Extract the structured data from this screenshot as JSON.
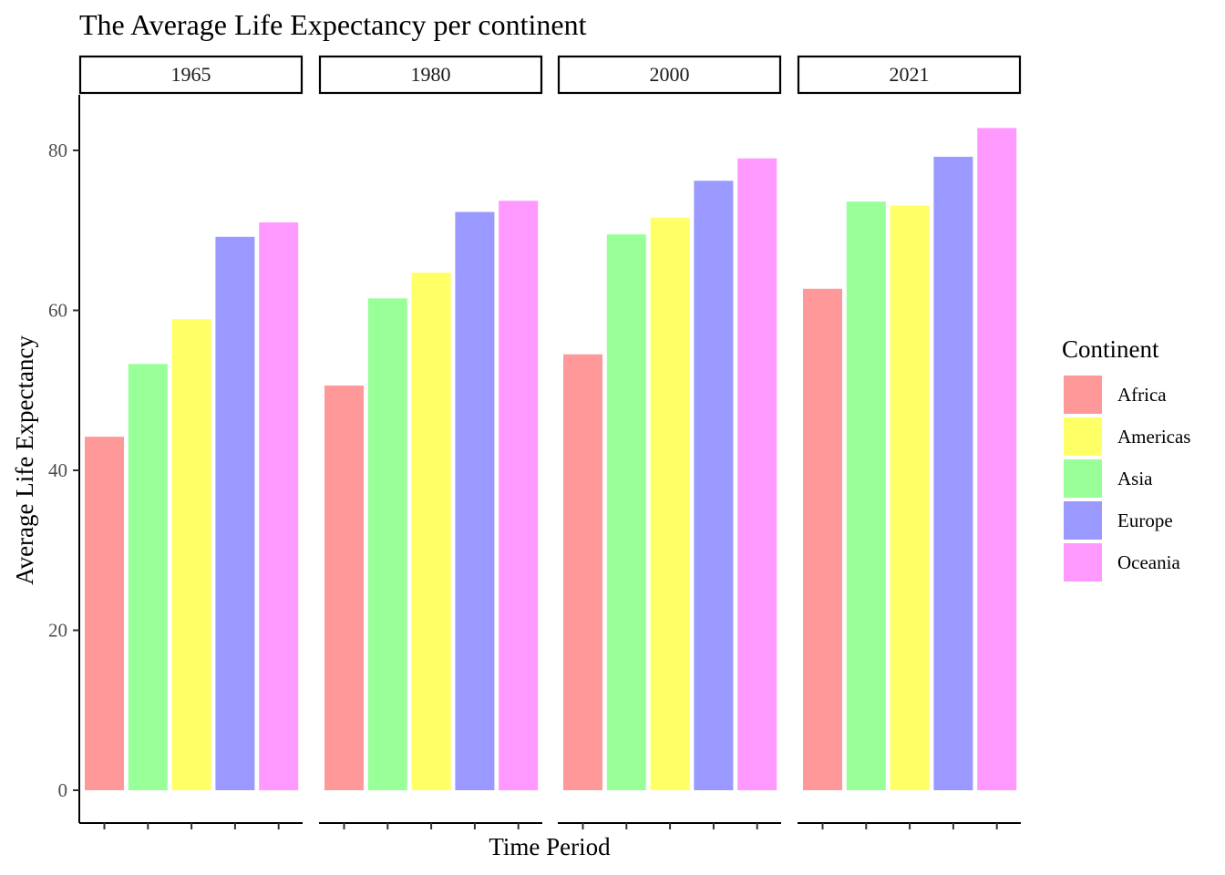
{
  "chart_data": {
    "type": "bar",
    "title": "The Average Life Expectancy per continent",
    "xlabel": "Time Period",
    "ylabel": "Average Life Expectancy",
    "ylim": [
      0,
      87
    ],
    "yticks": [
      0,
      20,
      40,
      60,
      80
    ],
    "facets": [
      "1965",
      "1980",
      "2000",
      "2021"
    ],
    "categories": [
      "Africa",
      "Asia",
      "Americas",
      "Europe",
      "Oceania"
    ],
    "colors": {
      "Africa": "#FF9999",
      "Americas": "#FFFF66",
      "Asia": "#99FF99",
      "Europe": "#9999FF",
      "Oceania": "#FF99FF"
    },
    "series": [
      {
        "facet": "1965",
        "values": {
          "Africa": 44.2,
          "Asia": 53.3,
          "Americas": 58.9,
          "Europe": 69.2,
          "Oceania": 71.0
        }
      },
      {
        "facet": "1980",
        "values": {
          "Africa": 50.6,
          "Asia": 61.5,
          "Americas": 64.7,
          "Europe": 72.3,
          "Oceania": 73.7
        }
      },
      {
        "facet": "2000",
        "values": {
          "Africa": 54.5,
          "Asia": 69.5,
          "Americas": 71.6,
          "Europe": 76.2,
          "Oceania": 79.0
        }
      },
      {
        "facet": "2021",
        "values": {
          "Africa": 62.7,
          "Asia": 73.6,
          "Americas": 73.1,
          "Europe": 79.2,
          "Oceania": 82.8
        }
      }
    ],
    "legend": {
      "title": "Continent",
      "position": "right",
      "items": [
        "Africa",
        "Americas",
        "Asia",
        "Europe",
        "Oceania"
      ]
    },
    "grid": false
  }
}
